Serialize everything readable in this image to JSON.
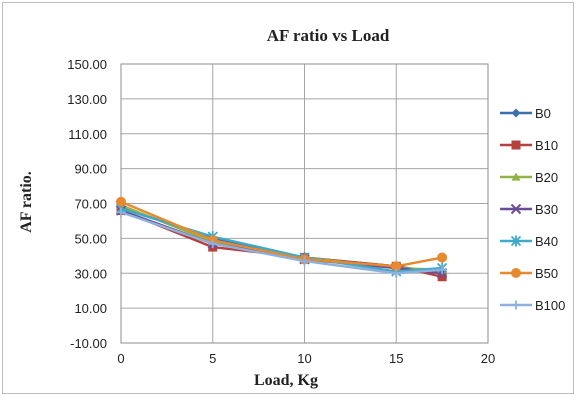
{
  "chart_data": {
    "type": "line",
    "title": "AF ratio vs Load",
    "xlabel": "Load, Kg",
    "ylabel": "AF ratio.",
    "xlim": [
      0,
      20
    ],
    "ylim": [
      -10,
      150
    ],
    "xticks": [
      0,
      5,
      10,
      15,
      20
    ],
    "yticks": [
      -10,
      10,
      30,
      50,
      70,
      90,
      110,
      130,
      150
    ],
    "xtick_labels": [
      "0",
      "5",
      "10",
      "15",
      "20"
    ],
    "ytick_labels": [
      "-10.00",
      "10.00",
      "30.00",
      "50.00",
      "70.00",
      "90.00",
      "110.00",
      "130.00",
      "150.00"
    ],
    "grid": true,
    "legend_position": "right",
    "x": [
      0,
      5,
      10,
      15,
      17.5
    ],
    "series": [
      {
        "name": "B0",
        "color": "#3a6fb0",
        "marker": "diamond",
        "values": [
          68,
          50,
          39,
          34,
          30
        ]
      },
      {
        "name": "B10",
        "color": "#b5413f",
        "marker": "square",
        "values": [
          66,
          45,
          39,
          34,
          28
        ]
      },
      {
        "name": "B20",
        "color": "#93b348",
        "marker": "triangle",
        "values": [
          69,
          48,
          39,
          33,
          32
        ]
      },
      {
        "name": "B30",
        "color": "#6b4d96",
        "marker": "x",
        "values": [
          66,
          47,
          38,
          33,
          30
        ]
      },
      {
        "name": "B40",
        "color": "#3ea9c9",
        "marker": "star",
        "values": [
          67,
          51,
          39,
          31,
          33
        ]
      },
      {
        "name": "B50",
        "color": "#e9892e",
        "marker": "circle",
        "values": [
          71,
          49,
          38,
          34,
          39
        ]
      },
      {
        "name": "B100",
        "color": "#8fb0dc",
        "marker": "plus",
        "values": [
          65,
          47,
          37,
          30,
          32
        ]
      }
    ]
  }
}
